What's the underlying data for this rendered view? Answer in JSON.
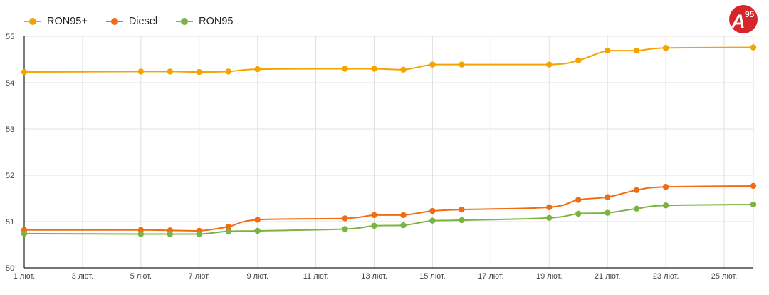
{
  "brand": {
    "logo_letter": "A",
    "logo_number": "95",
    "color": "#d7262b"
  },
  "chart_data": {
    "type": "line",
    "x_tick_labels": [
      "1 лют.",
      "3 лют.",
      "5 лют.",
      "7 лют.",
      "9 лют.",
      "11 лют.",
      "13 лют.",
      "15 лют.",
      "17 лют.",
      "19 лют.",
      "21 лют.",
      "23 лют.",
      "25 лют."
    ],
    "x_tick_days": [
      1,
      3,
      5,
      7,
      9,
      11,
      13,
      15,
      17,
      19,
      21,
      23,
      25
    ],
    "x_range_days": [
      1,
      26
    ],
    "y_ticks": [
      50,
      51,
      52,
      53,
      54,
      55
    ],
    "ylim": [
      50,
      55
    ],
    "grid": true,
    "legend_position": "top-left",
    "series": [
      {
        "name": "RON95+",
        "color": "#f5a300",
        "days": [
          1,
          5,
          6,
          7,
          8,
          9,
          12,
          13,
          14,
          15,
          16,
          19,
          20,
          21,
          22,
          23,
          26
        ],
        "values": [
          54.23,
          54.24,
          54.24,
          54.23,
          54.24,
          54.29,
          54.3,
          54.3,
          54.28,
          54.39,
          54.39,
          54.39,
          54.48,
          54.69,
          54.69,
          54.75,
          54.76
        ]
      },
      {
        "name": "Diesel",
        "color": "#f26b10",
        "days": [
          1,
          5,
          6,
          7,
          8,
          9,
          12,
          13,
          14,
          15,
          16,
          19,
          20,
          21,
          22,
          23,
          26
        ],
        "values": [
          50.82,
          50.82,
          50.81,
          50.8,
          50.89,
          51.04,
          51.07,
          51.14,
          51.14,
          51.23,
          51.26,
          51.31,
          51.47,
          51.53,
          51.68,
          51.75,
          51.77
        ]
      },
      {
        "name": "RON95",
        "color": "#7cb342",
        "days": [
          1,
          5,
          6,
          7,
          8,
          9,
          12,
          13,
          14,
          15,
          16,
          19,
          20,
          21,
          22,
          23,
          26
        ],
        "values": [
          50.74,
          50.73,
          50.73,
          50.73,
          50.79,
          50.8,
          50.84,
          50.91,
          50.92,
          51.02,
          51.03,
          51.08,
          51.17,
          51.19,
          51.28,
          51.35,
          51.37
        ]
      }
    ]
  }
}
